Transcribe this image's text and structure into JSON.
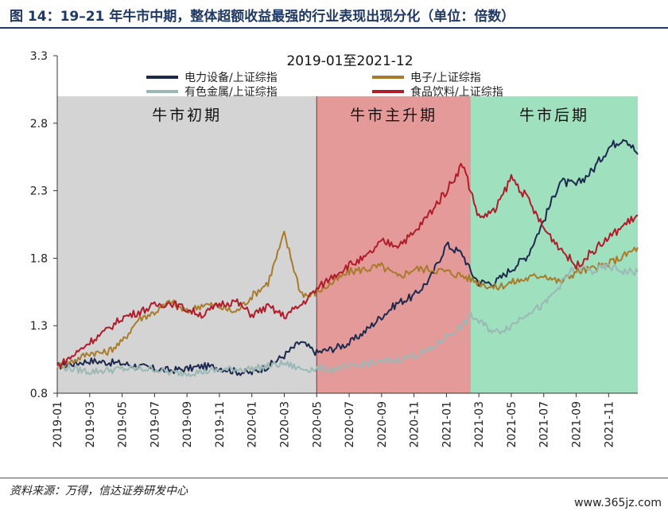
{
  "figure": {
    "title": "图 14：19–21 年牛市中期，整体超额收益最强的行业表现出现分化（单位：倍数）",
    "source": "资料来源：万得，信达证券研发中心",
    "watermark": "www.365jz.com"
  },
  "chart_data": {
    "type": "line",
    "title": "2019-01至2021-12",
    "ylim": [
      0.8,
      3.3
    ],
    "yticks": [
      "3.3",
      "2.8",
      "2.3",
      "1.8",
      "1.3",
      "0.8"
    ],
    "xticks": [
      "2019-01",
      "2019-03",
      "2019-05",
      "2019-07",
      "2019-09",
      "2019-11",
      "2020-01",
      "2020-03",
      "2020-05",
      "2020-07",
      "2020-09",
      "2020-11",
      "2021-01",
      "2021-03",
      "2021-05",
      "2021-07",
      "2021-09",
      "2021-11"
    ],
    "phases": [
      {
        "label": "牛市初期",
        "start": 0,
        "end": 16,
        "color": "#d4d4d4"
      },
      {
        "label": "牛市主升期",
        "start": 16,
        "end": 25.5,
        "color": "#e59a9a"
      },
      {
        "label": "牛市后期",
        "start": 25.5,
        "end": 35.8,
        "color": "#9fe0bf"
      }
    ],
    "legend_placement": "top",
    "series": [
      {
        "name": "电力设备/上证综指",
        "color": "#1d2a4d",
        "points": [
          [
            0,
            1.0
          ],
          [
            1,
            1.02
          ],
          [
            2,
            1.04
          ],
          [
            3,
            1.03
          ],
          [
            4,
            1.02
          ],
          [
            5,
            1.0
          ],
          [
            6,
            0.98
          ],
          [
            7,
            0.97
          ],
          [
            8,
            0.98
          ],
          [
            9,
            1.0
          ],
          [
            10,
            0.99
          ],
          [
            11,
            0.96
          ],
          [
            12,
            0.95
          ],
          [
            13,
            1.0
          ],
          [
            14,
            1.08
          ],
          [
            15,
            1.18
          ],
          [
            16,
            1.1
          ],
          [
            17,
            1.13
          ],
          [
            18,
            1.17
          ],
          [
            19,
            1.26
          ],
          [
            20,
            1.37
          ],
          [
            21,
            1.47
          ],
          [
            22,
            1.52
          ],
          [
            23,
            1.65
          ],
          [
            24,
            1.9
          ],
          [
            25,
            1.83
          ],
          [
            25.5,
            1.7
          ],
          [
            26,
            1.62
          ],
          [
            27,
            1.62
          ],
          [
            28,
            1.72
          ],
          [
            29,
            1.82
          ],
          [
            30,
            2.08
          ],
          [
            31,
            2.37
          ],
          [
            32,
            2.34
          ],
          [
            33,
            2.45
          ],
          [
            34,
            2.62
          ],
          [
            35,
            2.7
          ],
          [
            35.8,
            2.57
          ]
        ]
      },
      {
        "name": "电子/上证综指",
        "color": "#a87b2c",
        "points": [
          [
            0,
            1.0
          ],
          [
            1,
            1.04
          ],
          [
            2,
            1.1
          ],
          [
            3,
            1.1
          ],
          [
            4,
            1.18
          ],
          [
            5,
            1.35
          ],
          [
            6,
            1.4
          ],
          [
            7,
            1.48
          ],
          [
            8,
            1.4
          ],
          [
            9,
            1.46
          ],
          [
            10,
            1.44
          ],
          [
            11,
            1.4
          ],
          [
            12,
            1.52
          ],
          [
            13,
            1.62
          ],
          [
            14,
            1.98
          ],
          [
            15,
            1.55
          ],
          [
            15.5,
            1.52
          ],
          [
            16,
            1.55
          ],
          [
            17,
            1.62
          ],
          [
            18,
            1.7
          ],
          [
            19,
            1.72
          ],
          [
            20,
            1.74
          ],
          [
            21,
            1.66
          ],
          [
            22,
            1.72
          ],
          [
            23,
            1.72
          ],
          [
            24,
            1.7
          ],
          [
            25,
            1.67
          ],
          [
            26,
            1.62
          ],
          [
            27,
            1.58
          ],
          [
            28,
            1.62
          ],
          [
            29,
            1.65
          ],
          [
            30,
            1.68
          ],
          [
            31,
            1.62
          ],
          [
            32,
            1.7
          ],
          [
            33,
            1.72
          ],
          [
            34,
            1.76
          ],
          [
            35,
            1.82
          ],
          [
            35.8,
            1.88
          ]
        ]
      },
      {
        "name": "有色金属/上证综指",
        "color": "#9bb8b5",
        "points": [
          [
            0,
            1.0
          ],
          [
            1,
            0.98
          ],
          [
            2,
            0.96
          ],
          [
            3,
            0.97
          ],
          [
            4,
            0.98
          ],
          [
            5,
            0.98
          ],
          [
            6,
            0.98
          ],
          [
            7,
            0.95
          ],
          [
            8,
            0.95
          ],
          [
            9,
            0.96
          ],
          [
            10,
            0.97
          ],
          [
            11,
            0.98
          ],
          [
            12,
            0.98
          ],
          [
            13,
            1.0
          ],
          [
            14,
            1.02
          ],
          [
            15,
            0.98
          ],
          [
            16,
            0.98
          ],
          [
            17,
            0.98
          ],
          [
            18,
            0.99
          ],
          [
            19,
            1.02
          ],
          [
            20,
            1.03
          ],
          [
            21,
            1.05
          ],
          [
            22,
            1.08
          ],
          [
            23,
            1.12
          ],
          [
            24,
            1.22
          ],
          [
            25,
            1.3
          ],
          [
            25.5,
            1.38
          ],
          [
            26,
            1.33
          ],
          [
            27,
            1.25
          ],
          [
            28,
            1.3
          ],
          [
            29,
            1.4
          ],
          [
            30,
            1.45
          ],
          [
            31,
            1.6
          ],
          [
            32,
            1.75
          ],
          [
            33,
            1.7
          ],
          [
            34,
            1.74
          ],
          [
            35,
            1.7
          ],
          [
            35.8,
            1.7
          ]
        ]
      },
      {
        "name": "食品饮料/上证综指",
        "color": "#b01c2a",
        "points": [
          [
            0,
            1.0
          ],
          [
            1,
            1.08
          ],
          [
            2,
            1.18
          ],
          [
            3,
            1.26
          ],
          [
            4,
            1.36
          ],
          [
            5,
            1.4
          ],
          [
            6,
            1.45
          ],
          [
            7,
            1.47
          ],
          [
            8,
            1.42
          ],
          [
            9,
            1.38
          ],
          [
            10,
            1.46
          ],
          [
            11,
            1.48
          ],
          [
            12,
            1.38
          ],
          [
            13,
            1.44
          ],
          [
            14,
            1.37
          ],
          [
            15,
            1.45
          ],
          [
            16,
            1.57
          ],
          [
            17,
            1.67
          ],
          [
            18,
            1.75
          ],
          [
            19,
            1.8
          ],
          [
            20,
            1.92
          ],
          [
            21,
            1.9
          ],
          [
            22,
            1.98
          ],
          [
            23,
            2.14
          ],
          [
            24,
            2.3
          ],
          [
            25,
            2.5
          ],
          [
            25.5,
            2.3
          ],
          [
            26,
            2.1
          ],
          [
            27,
            2.15
          ],
          [
            28,
            2.4
          ],
          [
            29,
            2.24
          ],
          [
            30,
            2.02
          ],
          [
            31,
            1.88
          ],
          [
            32,
            1.74
          ],
          [
            33,
            1.85
          ],
          [
            34,
            1.95
          ],
          [
            35,
            2.05
          ],
          [
            35.8,
            2.12
          ]
        ]
      }
    ]
  }
}
